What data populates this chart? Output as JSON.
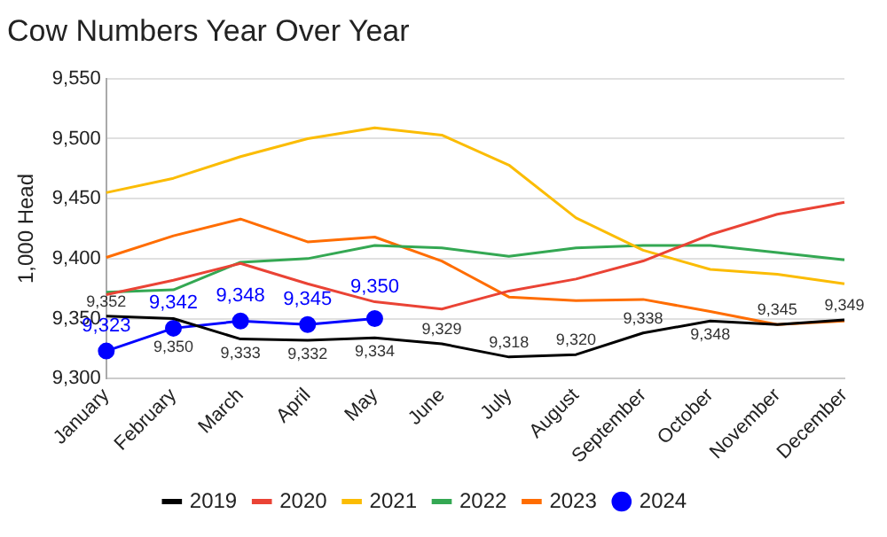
{
  "chart_data": {
    "type": "line",
    "title": "Cow Numbers Year Over Year",
    "ylabel": "1,000 Head",
    "categories": [
      "January",
      "February",
      "March",
      "April",
      "May",
      "June",
      "July",
      "August",
      "September",
      "October",
      "November",
      "December"
    ],
    "series": [
      {
        "name": "2019",
        "color": "#000000",
        "marker": "none",
        "values": [
          9352,
          9350,
          9333,
          9332,
          9334,
          9329,
          9318,
          9320,
          9338,
          9348,
          9345,
          9349
        ],
        "value_labels": [
          "9,352",
          "9,350",
          "9,333",
          "9,332",
          "9,334",
          "9,329",
          "9,318",
          "9,320",
          "9,338",
          "9,348",
          "9,345",
          "9,349"
        ]
      },
      {
        "name": "2020",
        "color": "#ea4335",
        "marker": "none",
        "values": [
          9370,
          9382,
          9396,
          9379,
          9364,
          9358,
          9373,
          9383,
          9398,
          9420,
          9437,
          9447
        ]
      },
      {
        "name": "2021",
        "color": "#fbbc04",
        "marker": "none",
        "values": [
          9455,
          9467,
          9485,
          9500,
          9509,
          9503,
          9478,
          9434,
          9407,
          9391,
          9387,
          9379
        ]
      },
      {
        "name": "2022",
        "color": "#34a853",
        "marker": "none",
        "values": [
          9372,
          9374,
          9397,
          9400,
          9411,
          9409,
          9402,
          9409,
          9411,
          9411,
          9405,
          9399
        ]
      },
      {
        "name": "2023",
        "color": "#ff6d01",
        "marker": "none",
        "values": [
          9401,
          9419,
          9433,
          9414,
          9418,
          9398,
          9368,
          9365,
          9366,
          9356,
          9345,
          9348
        ]
      },
      {
        "name": "2024",
        "color": "#0000ff",
        "marker": "circle",
        "values": [
          9323,
          9342,
          9348,
          9345,
          9350,
          null,
          null,
          null,
          null,
          null,
          null,
          null
        ],
        "value_labels": [
          "9,323",
          "9,342",
          "9,348",
          "9,345",
          "9,350",
          null,
          null,
          null,
          null,
          null,
          null,
          null
        ]
      }
    ],
    "ylim": [
      9300,
      9550
    ],
    "yticks": [
      {
        "value": 9300,
        "label": "9,300"
      },
      {
        "value": 9350,
        "label": "9,350"
      },
      {
        "value": 9400,
        "label": "9,400"
      },
      {
        "value": 9450,
        "label": "9,450"
      },
      {
        "value": 9500,
        "label": "9,500"
      },
      {
        "value": 9550,
        "label": "9,550"
      }
    ],
    "grid": "y",
    "legend": "bottom",
    "line_style": "solid"
  }
}
